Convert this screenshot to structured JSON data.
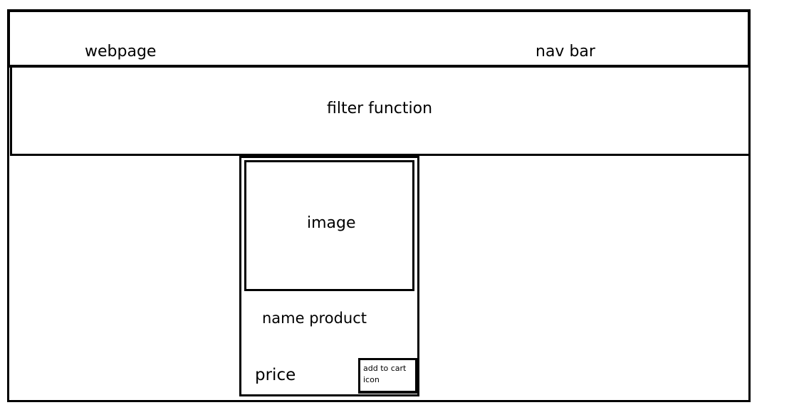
{
  "header": {
    "title": "webpage",
    "nav_label": "nav bar"
  },
  "filter": {
    "label": "filter function"
  },
  "product_card": {
    "image_label": "image",
    "name": "name product",
    "price": "price",
    "cart_button_label": "add to cart\nicon"
  }
}
